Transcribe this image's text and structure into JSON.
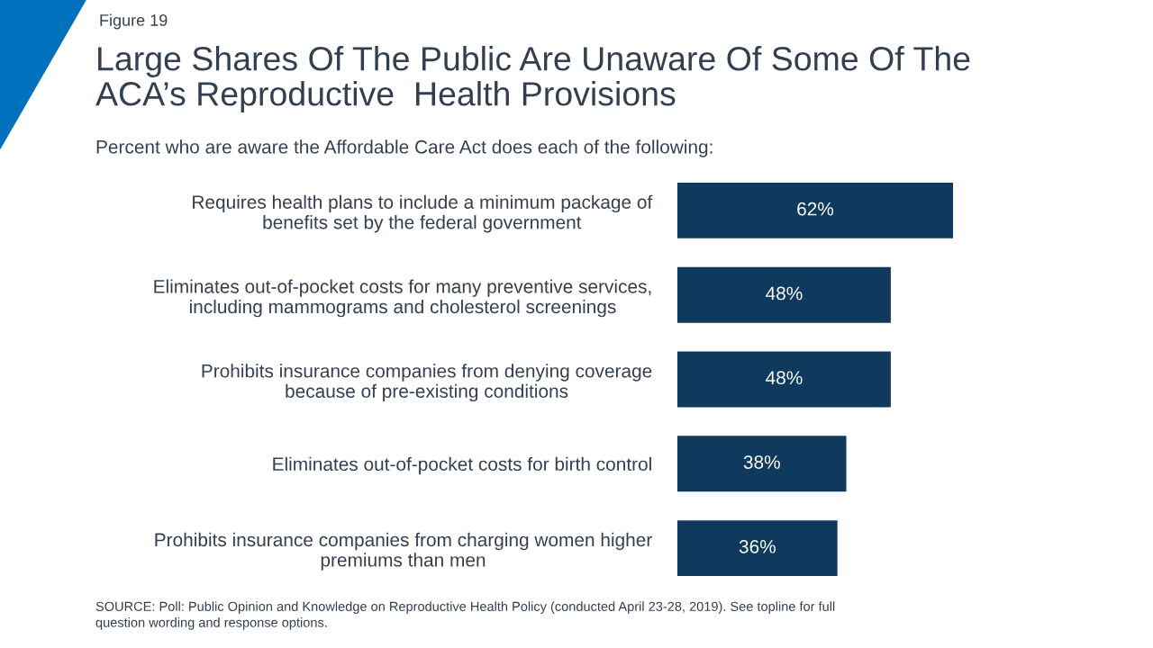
{
  "chart_data": {
    "type": "bar",
    "orientation": "horizontal",
    "title": "Large Shares Of The Public Are Unaware Of Some Of The\nACA’s Reproductive  Health Provisions",
    "subtitle": "Percent who are aware the Affordable Care Act does each of the following:",
    "categories": [
      "Requires health plans to include a minimum package of\nbenefits set by the federal government",
      "Eliminates out-of-pocket costs for many preventive services,\nincluding mammograms and cholesterol screenings",
      "Prohibits insurance companies from denying coverage\nbecause of pre-existing conditions",
      "Eliminates out-of-pocket costs for birth control",
      "Prohibits insurance companies from charging women higher\npremiums than men"
    ],
    "values": [
      62,
      48,
      48,
      38,
      36
    ],
    "color": "#0f3a5e",
    "data_labels": true,
    "value_labels": [
      "62%",
      "48%",
      "48%",
      "38%",
      "36%"
    ],
    "grid": false,
    "annotations": [
      "Figure 19",
      "SOURCE: Poll: Public Opinion and Knowledge on Reproductive Health Policy (conducted April 23-28, 2019). See topline for full\nquestion wording and response options."
    ]
  }
}
